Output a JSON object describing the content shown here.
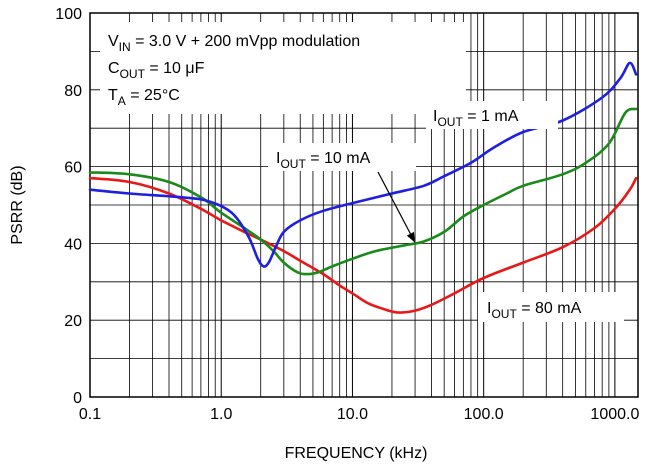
{
  "chart_data": {
    "type": "line",
    "xscale": "log",
    "xlim": [
      0.1,
      1500
    ],
    "ylim": [
      0,
      100
    ],
    "xlabel": "FREQUENCY (kHz)",
    "ylabel": "PSRR (dB)",
    "x_ticks": [
      0.1,
      1.0,
      10.0,
      100.0,
      1000.0
    ],
    "x_tick_labels": [
      "0.1",
      "1.0",
      "10.0",
      "100.0",
      "1000.0"
    ],
    "y_ticks": [
      0,
      20,
      40,
      60,
      80,
      100
    ],
    "y_tick_labels": [
      "0",
      "20",
      "40",
      "60",
      "80",
      "100"
    ],
    "grid": true,
    "conditions": [
      {
        "main": "V",
        "sub": "IN",
        "rest": " = 3.0 V + 200 mVpp modulation"
      },
      {
        "main": "C",
        "sub": "OUT",
        "rest": " = 10 μF"
      },
      {
        "main": "T",
        "sub": "A",
        "rest": " = 25°C"
      }
    ],
    "series": [
      {
        "label_main": "I",
        "label_sub": "OUT",
        "label_rest": " = 1 mA",
        "color": "#1f1fe0",
        "x": [
          0.1,
          0.2,
          0.5,
          0.8,
          1.2,
          1.6,
          1.9,
          2.1,
          2.3,
          2.6,
          3.0,
          4.0,
          6.0,
          10,
          20,
          35,
          50,
          80,
          120,
          200,
          400,
          800,
          1100,
          1300,
          1450
        ],
        "y": [
          54,
          53,
          52,
          51,
          48,
          42,
          36,
          34,
          35,
          39,
          43,
          46,
          48.5,
          50.5,
          53,
          55,
          57.5,
          61,
          65,
          69,
          72,
          78,
          83,
          87,
          84
        ]
      },
      {
        "label_main": "I",
        "label_sub": "OUT",
        "label_rest": " = 10 mA",
        "color": "#1a8a1a",
        "x": [
          0.1,
          0.2,
          0.4,
          0.7,
          1.0,
          1.5,
          2.0,
          2.5,
          3.0,
          3.8,
          4.5,
          5.5,
          7.0,
          10,
          15,
          25,
          35,
          50,
          70,
          100,
          150,
          200,
          400,
          600,
          900,
          1200,
          1450
        ],
        "y": [
          58.5,
          58,
          56,
          52,
          48,
          44,
          41,
          38,
          35,
          32.5,
          32,
          32.5,
          34,
          36,
          38,
          39.5,
          40.5,
          43,
          47,
          50,
          53,
          55,
          58,
          61,
          66,
          74,
          75
        ]
      },
      {
        "label_main": "I",
        "label_sub": "OUT",
        "label_rest": " = 80 mA",
        "color": "#e81818",
        "x": [
          0.1,
          0.2,
          0.4,
          0.7,
          1.0,
          1.5,
          2.0,
          3.0,
          4.0,
          6.0,
          8.0,
          10,
          13,
          17,
          22,
          30,
          40,
          60,
          100,
          200,
          400,
          700,
          1000,
          1300,
          1450
        ],
        "y": [
          57,
          56,
          53,
          49,
          46,
          43,
          41,
          38,
          35.5,
          32,
          29,
          27,
          24.5,
          23,
          22,
          22.5,
          24,
          27,
          31,
          35,
          39,
          44,
          49,
          54,
          57
        ]
      }
    ],
    "annotations": [
      {
        "series": 0
      },
      {
        "series": 1,
        "arrow": true
      },
      {
        "series": 2
      }
    ]
  }
}
